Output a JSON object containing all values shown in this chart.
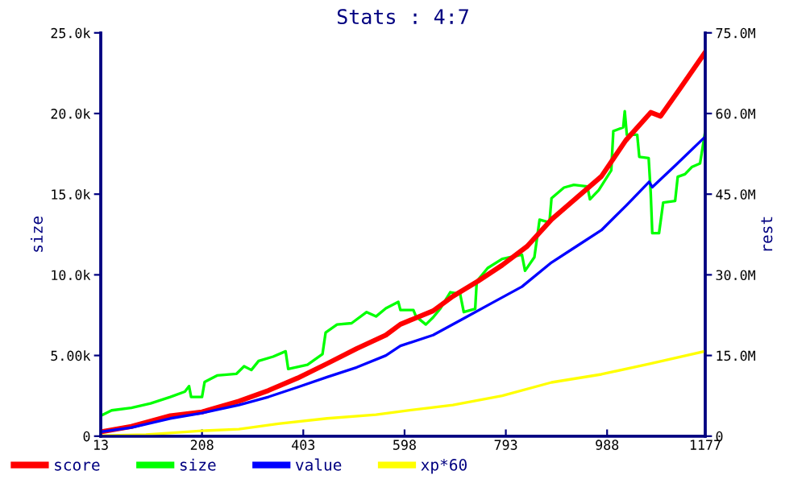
{
  "chart_data": {
    "type": "line",
    "title": "Stats : 4:7",
    "ylabel": "size",
    "y2label": "rest",
    "xlim": [
      13,
      1177
    ],
    "xticks": [
      13,
      208,
      403,
      598,
      793,
      988,
      1177
    ],
    "ylim": [
      0,
      25000
    ],
    "yticks": [
      0,
      {
        "value": 5000,
        "label": "5.00k"
      },
      {
        "value": 10000,
        "label": "10.0k"
      },
      {
        "value": 15000,
        "label": "15.0k"
      },
      {
        "value": 20000,
        "label": "20.0k"
      },
      {
        "value": 25000,
        "label": "25.0k"
      }
    ],
    "y2lim": [
      0,
      75000000
    ],
    "y2ticks": [
      0,
      {
        "value": 15000000,
        "label": "15.0M"
      },
      {
        "value": 30000000,
        "label": "30.0M"
      },
      {
        "value": 45000000,
        "label": "45.0M"
      },
      {
        "value": 60000000,
        "label": "60.0M"
      },
      {
        "value": 75000000,
        "label": "75.0M"
      }
    ],
    "grid": false,
    "legend": "bottom",
    "series": [
      {
        "name": "score",
        "color": "#ff0000",
        "axis": "y2",
        "x": [
          13,
          72,
          147,
          208,
          279,
          336,
          392,
          449,
          506,
          562,
          590,
          653,
          691,
          739,
          786,
          834,
          881,
          929,
          977,
          1024,
          1072,
          1091,
          1129,
          1177
        ],
        "values": [
          800000,
          1800000,
          3800000,
          4500000,
          6500000,
          8500000,
          10800000,
          13500000,
          16300000,
          18800000,
          20800000,
          23300000,
          26000000,
          28800000,
          31800000,
          35300000,
          40300000,
          44300000,
          48300000,
          55000000,
          60200000,
          59500000,
          64700000,
          71400000
        ]
      },
      {
        "name": "size",
        "color": "#00ff00",
        "x": [
          13,
          34,
          72,
          109,
          147,
          175,
          183,
          187,
          208,
          213,
          237,
          274,
          289,
          303,
          317,
          345,
          369,
          374,
          411,
          440,
          446,
          468,
          496,
          525,
          543,
          562,
          586,
          590,
          615,
          620,
          639,
          653,
          667,
          686,
          705,
          712,
          734,
          737,
          758,
          786,
          824,
          830,
          848,
          858,
          877,
          881,
          905,
          924,
          950,
          955,
          972,
          996,
          1000,
          1019,
          1022,
          1026,
          1046,
          1050,
          1068,
          1072,
          1075,
          1088,
          1096,
          1119,
          1124,
          1138,
          1151,
          1167,
          1172,
          1177
        ],
        "values": [
          1260,
          1600,
          1760,
          2030,
          2430,
          2760,
          3100,
          2430,
          2430,
          3360,
          3760,
          3860,
          4330,
          4100,
          4660,
          4930,
          5260,
          4160,
          4430,
          5090,
          6420,
          6920,
          7000,
          7690,
          7420,
          7920,
          8320,
          7820,
          7820,
          7420,
          6920,
          7360,
          7920,
          8920,
          8820,
          7690,
          7890,
          9590,
          10420,
          10990,
          11250,
          10250,
          11090,
          13420,
          13250,
          14750,
          15410,
          15580,
          15480,
          14680,
          15250,
          16480,
          18910,
          19140,
          20140,
          18680,
          18680,
          17310,
          17240,
          15080,
          12580,
          12580,
          14480,
          14580,
          16080,
          16240,
          16680,
          16910,
          17910,
          18910
        ]
      },
      {
        "name": "value",
        "color": "#0000ff",
        "axis": "y2",
        "x": [
          13,
          72,
          147,
          208,
          279,
          336,
          392,
          449,
          506,
          562,
          590,
          653,
          710,
          767,
          824,
          881,
          929,
          977,
          1024,
          1069,
          1075,
          1119,
          1177
        ],
        "values": [
          800000,
          1600000,
          3300000,
          4300000,
          5800000,
          7300000,
          9100000,
          11000000,
          12800000,
          15000000,
          16800000,
          18800000,
          21800000,
          24800000,
          27800000,
          32300000,
          35300000,
          38300000,
          42800000,
          47300000,
          46300000,
          50300000,
          55700000
        ]
      },
      {
        "name": "xp*60",
        "color": "#ffff00",
        "axis": "y2",
        "x": [
          13,
          100,
          208,
          279,
          355,
          449,
          543,
          590,
          691,
          786,
          881,
          977,
          1072,
          1177
        ],
        "values": [
          100000,
          300000,
          1000000,
          1300000,
          2300000,
          3300000,
          4000000,
          4600000,
          5800000,
          7500000,
          10000000,
          11500000,
          13500000,
          15800000
        ]
      }
    ]
  }
}
